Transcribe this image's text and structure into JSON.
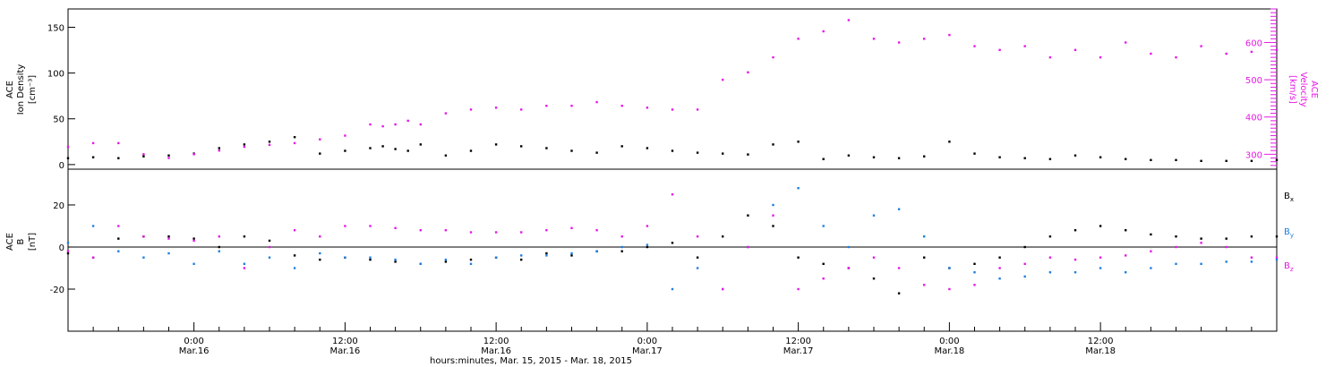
{
  "colors": {
    "black": "#000000",
    "magenta": "#e619e6",
    "blue": "#1f7fe0"
  },
  "chart_data": [
    {
      "type": "scatter",
      "title": "",
      "ylabel_left": [
        "ACE",
        "Ion Density",
        "[cm⁻³]"
      ],
      "ylabel_right": [
        "ACE",
        "Velocity",
        "[km/s]"
      ],
      "xlim_hours": [
        0,
        96
      ],
      "ylim_left": [
        -5,
        170
      ],
      "ylim_right": [
        260,
        690
      ],
      "yticks_left": [
        "0",
        "50",
        "100",
        "150"
      ],
      "yticks_left_values": [
        0,
        50,
        100,
        150
      ],
      "yticks_right": [
        "300",
        "400",
        "500",
        "600"
      ],
      "yticks_right_values": [
        300,
        400,
        500,
        600
      ],
      "series": [
        {
          "name": "Ion Density",
          "axis": "left",
          "color": "#000000",
          "x": [
            0,
            2,
            4,
            6,
            8,
            10,
            12,
            14,
            16,
            18,
            20,
            22,
            24,
            25,
            26,
            27,
            28,
            30,
            32,
            34,
            36,
            38,
            40,
            42,
            44,
            46,
            48,
            50,
            52,
            54,
            56,
            58,
            60,
            62,
            64,
            66,
            68,
            70,
            72,
            74,
            76,
            78,
            80,
            82,
            84,
            86,
            88,
            90,
            92,
            94,
            96
          ],
          "y": [
            7,
            8,
            7,
            9,
            10,
            12,
            18,
            22,
            25,
            30,
            12,
            15,
            18,
            20,
            17,
            15,
            22,
            10,
            15,
            22,
            20,
            18,
            15,
            13,
            20,
            18,
            15,
            13,
            12,
            11,
            22,
            25,
            6,
            10,
            8,
            7,
            9,
            25,
            12,
            8,
            7,
            6,
            10,
            8,
            6,
            5,
            5,
            4,
            4,
            4,
            5
          ]
        },
        {
          "name": "Velocity",
          "axis": "right",
          "color": "#e619e6",
          "x": [
            0,
            2,
            4,
            6,
            8,
            10,
            12,
            14,
            16,
            18,
            20,
            22,
            24,
            25,
            26,
            27,
            28,
            30,
            32,
            34,
            36,
            38,
            40,
            42,
            44,
            46,
            48,
            50,
            52,
            54,
            56,
            58,
            60,
            62,
            64,
            66,
            68,
            70,
            72,
            74,
            76,
            78,
            80,
            82,
            84,
            86,
            88,
            90,
            92,
            94,
            96
          ],
          "y": [
            320,
            330,
            330,
            300,
            290,
            300,
            310,
            320,
            325,
            330,
            340,
            350,
            380,
            375,
            380,
            390,
            380,
            410,
            420,
            425,
            420,
            430,
            430,
            440,
            430,
            425,
            420,
            420,
            500,
            520,
            560,
            610,
            630,
            660,
            610,
            600,
            610,
            620,
            590,
            580,
            590,
            560,
            580,
            560,
            600,
            570,
            560,
            590,
            570,
            575,
            580
          ]
        }
      ]
    },
    {
      "type": "scatter",
      "title": "",
      "ylabel_left": [
        "ACE",
        "B",
        "[nT]"
      ],
      "xlim_hours": [
        0,
        96
      ],
      "ylim": [
        -40,
        37
      ],
      "yticks_left": [
        "-20",
        "0",
        "20"
      ],
      "yticks_left_values": [
        -20,
        0,
        20
      ],
      "zero_line": true,
      "legend": "right",
      "xticks_hours": [
        10,
        22,
        34,
        46,
        58,
        70,
        82
      ],
      "xticks_top": [
        "0:00",
        "12:00",
        "12:00",
        "0:00",
        "12:00",
        "0:00",
        "12:00"
      ],
      "xticks_bottom": [
        "Mar.16",
        "Mar.16",
        "Mar.16",
        "Mar.17",
        "Mar.17",
        "Mar.18",
        "Mar.18"
      ],
      "xlabel": "hours:minutes, Mar. 15, 2015 - Mar. 18, 2015",
      "series": [
        {
          "name": "Bx",
          "label_main": "B",
          "label_sub": "x",
          "color": "#000000",
          "x": [
            0,
            2,
            4,
            6,
            8,
            10,
            12,
            14,
            16,
            18,
            20,
            22,
            24,
            26,
            28,
            30,
            32,
            34,
            36,
            38,
            40,
            42,
            44,
            46,
            48,
            50,
            52,
            54,
            56,
            58,
            60,
            62,
            64,
            66,
            68,
            70,
            72,
            74,
            76,
            78,
            80,
            82,
            84,
            86,
            88,
            90,
            92,
            94,
            96
          ],
          "y": [
            -3,
            -5,
            4,
            5,
            5,
            4,
            0,
            5,
            3,
            -4,
            -6,
            -5,
            -6,
            -7,
            -8,
            -7,
            -6,
            -5,
            -6,
            -3,
            -4,
            -2,
            -2,
            0,
            2,
            -5,
            5,
            15,
            10,
            -5,
            -8,
            -10,
            -15,
            -22,
            -5,
            -10,
            -8,
            -5,
            0,
            5,
            8,
            10,
            8,
            6,
            5,
            4,
            4,
            5,
            5
          ]
        },
        {
          "name": "By",
          "label_main": "B",
          "label_sub": "y",
          "color": "#1f7fe0",
          "x": [
            0,
            2,
            4,
            6,
            8,
            10,
            12,
            14,
            16,
            18,
            20,
            22,
            24,
            26,
            28,
            30,
            32,
            34,
            36,
            38,
            40,
            42,
            44,
            46,
            48,
            50,
            52,
            54,
            56,
            58,
            60,
            62,
            64,
            66,
            68,
            70,
            72,
            74,
            76,
            78,
            80,
            82,
            84,
            86,
            88,
            90,
            92,
            94,
            96
          ],
          "y": [
            2,
            10,
            -2,
            -5,
            -3,
            -8,
            -2,
            -8,
            -5,
            -10,
            -3,
            -5,
            -5,
            -6,
            -8,
            -6,
            -8,
            -5,
            -4,
            -4,
            -3,
            -2,
            0,
            1,
            -20,
            -10,
            -20,
            0,
            20,
            28,
            10,
            0,
            15,
            18,
            5,
            -10,
            -12,
            -15,
            -14,
            -12,
            -12,
            -10,
            -12,
            -10,
            -8,
            -8,
            -7,
            -7,
            -6
          ]
        },
        {
          "name": "Bz",
          "label_main": "B",
          "label_sub": "z",
          "color": "#e619e6",
          "x": [
            0,
            2,
            4,
            6,
            8,
            10,
            12,
            14,
            16,
            18,
            20,
            22,
            24,
            26,
            28,
            30,
            32,
            34,
            36,
            38,
            40,
            42,
            44,
            46,
            48,
            50,
            52,
            54,
            56,
            58,
            60,
            62,
            64,
            66,
            68,
            70,
            72,
            74,
            76,
            78,
            80,
            82,
            84,
            86,
            88,
            90,
            92,
            94,
            96
          ],
          "y": [
            -2,
            -5,
            10,
            5,
            4,
            3,
            5,
            -10,
            0,
            8,
            5,
            10,
            10,
            9,
            8,
            8,
            7,
            7,
            7,
            8,
            9,
            8,
            5,
            10,
            25,
            5,
            -20,
            0,
            15,
            -20,
            -15,
            -10,
            -5,
            -10,
            -18,
            -20,
            -18,
            -10,
            -8,
            -5,
            -6,
            -5,
            -4,
            -2,
            0,
            2,
            0,
            -5,
            -5
          ]
        }
      ]
    }
  ]
}
